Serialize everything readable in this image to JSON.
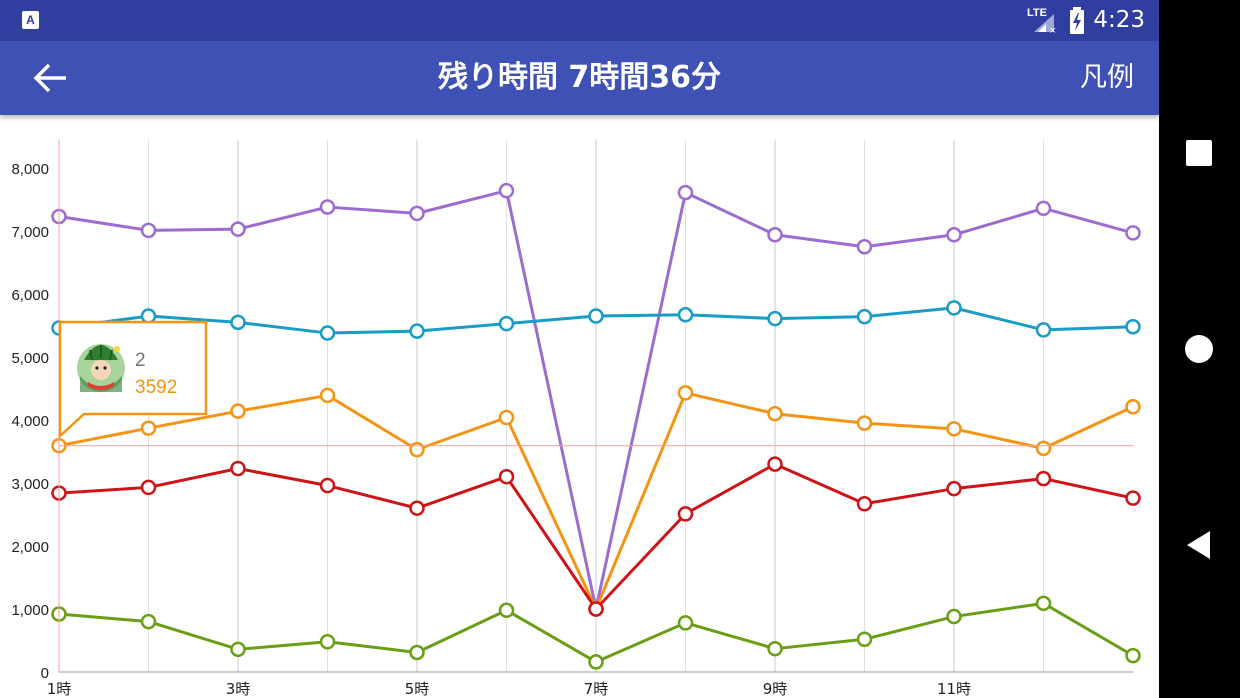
{
  "status_bar": {
    "time": "4:23",
    "network": "LTE",
    "app_icon_letter": "A"
  },
  "app_bar": {
    "title": "残り時間 7時間36分",
    "legend_label": "凡例",
    "back_icon": "arrow-left-icon"
  },
  "nav_bar": {
    "icons": [
      "square-icon",
      "circle-icon",
      "triangle-back-icon"
    ]
  },
  "tooltip": {
    "series_name": "2",
    "value": "3592",
    "avatar_icon": "watermelon-character-avatar"
  },
  "chart_data": {
    "type": "line",
    "x": [
      1,
      2,
      3,
      4,
      5,
      6,
      7,
      8,
      9,
      10,
      11,
      12,
      13
    ],
    "x_tick_labels": [
      {
        "x": 1,
        "label": "1時"
      },
      {
        "x": 3,
        "label": "3時"
      },
      {
        "x": 5,
        "label": "5時"
      },
      {
        "x": 7,
        "label": "7時"
      },
      {
        "x": 9,
        "label": "9時"
      },
      {
        "x": 11,
        "label": "11時"
      }
    ],
    "y_ticks": [
      0,
      1000,
      2000,
      3000,
      4000,
      5000,
      6000,
      7000,
      8000
    ],
    "y_tick_labels": [
      "0",
      "1,000",
      "2,000",
      "3,000",
      "4,000",
      "5,000",
      "6,000",
      "7,000",
      "8,000"
    ],
    "ylim": [
      0,
      8450
    ],
    "xlim": [
      1,
      13
    ],
    "grid_x": true,
    "grid_y": false,
    "highlight": {
      "x": 1,
      "y": 3592,
      "color": "#f4a19a"
    },
    "series": [
      {
        "color": "#9c6ccf",
        "values": [
          7230,
          7010,
          7030,
          7380,
          7280,
          7640,
          1000,
          7610,
          6940,
          6750,
          6940,
          7360,
          6970
        ]
      },
      {
        "color": "#1a9bc8",
        "values": [
          5460,
          5650,
          5550,
          5380,
          5410,
          5530,
          5650,
          5670,
          5610,
          5640,
          5780,
          5430,
          5480
        ]
      },
      {
        "color": "#f39414",
        "values": [
          3592,
          3870,
          4140,
          4390,
          3530,
          4040,
          1000,
          4430,
          4100,
          3950,
          3860,
          3550,
          4210
        ]
      },
      {
        "color": "#cc1419",
        "values": [
          2840,
          2930,
          3230,
          2960,
          2600,
          3100,
          1000,
          2510,
          3300,
          2670,
          2910,
          3070,
          2760
        ]
      },
      {
        "color": "#6a9e14",
        "values": [
          920,
          800,
          360,
          480,
          310,
          980,
          160,
          780,
          370,
          520,
          880,
          1090,
          260
        ]
      }
    ]
  }
}
